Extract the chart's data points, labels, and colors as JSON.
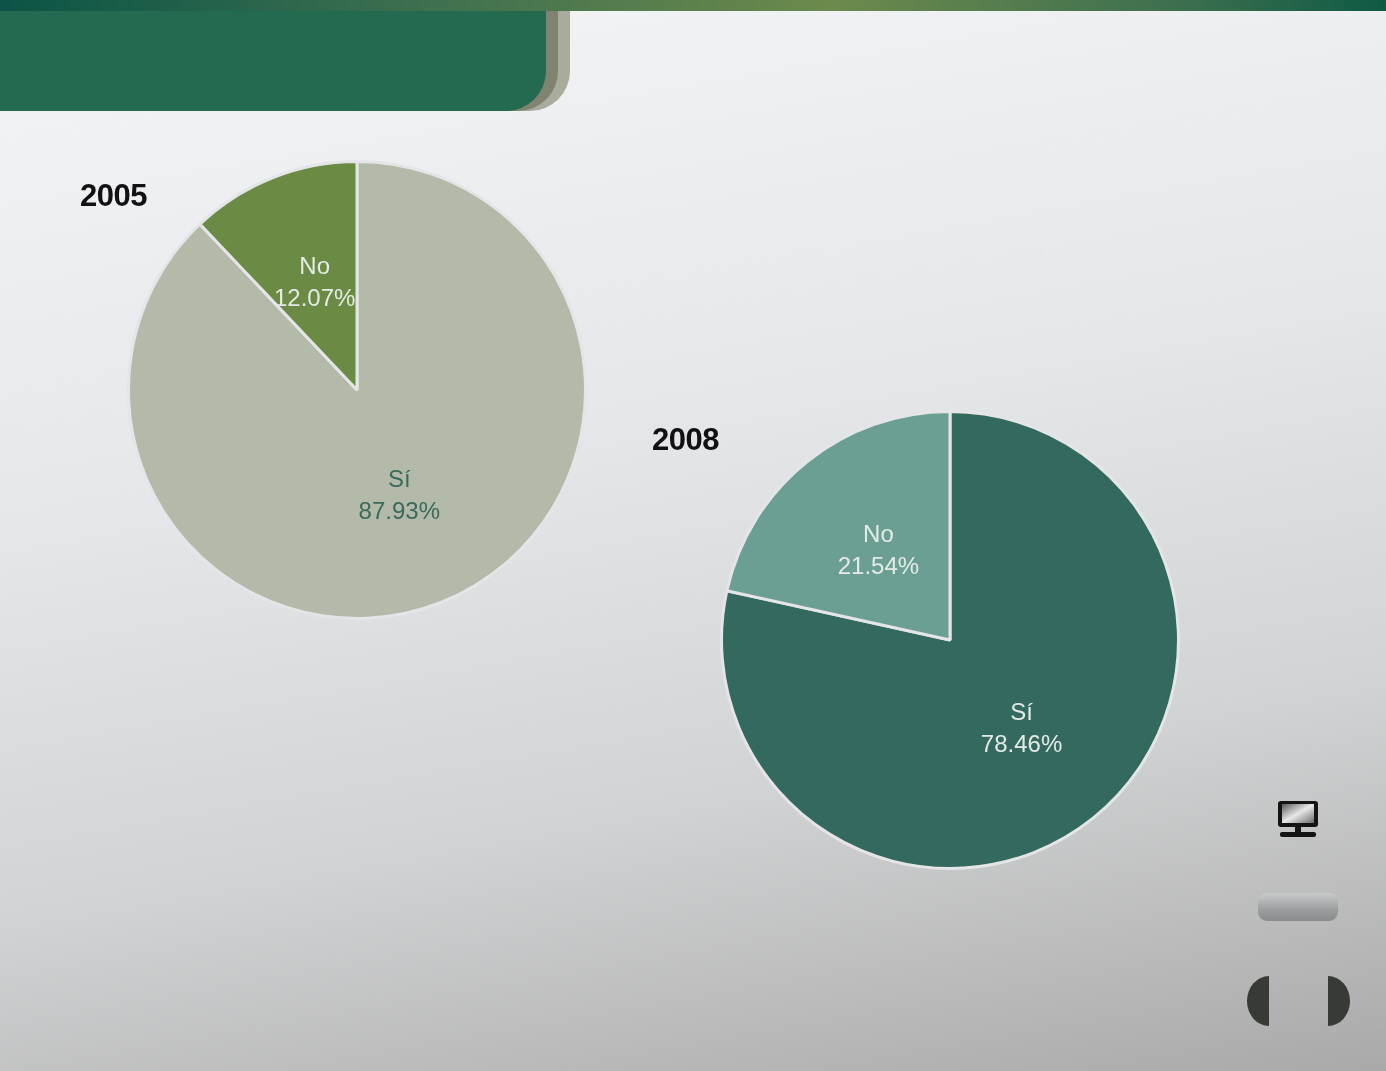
{
  "chart_data": [
    {
      "type": "pie",
      "title": "2005",
      "categories": [
        "Sí",
        "No"
      ],
      "values": [
        87.93,
        12.07
      ],
      "colors": [
        "#b3baa9",
        "#6b8b45"
      ],
      "value_labels": [
        "87.93%",
        "12.07%"
      ]
    },
    {
      "type": "pie",
      "title": "2008",
      "categories": [
        "Sí",
        "No"
      ],
      "values": [
        78.46,
        21.54
      ],
      "colors": [
        "#34695f",
        "#6b9f94"
      ],
      "value_labels": [
        "78.46%",
        "21.54%"
      ]
    }
  ]
}
